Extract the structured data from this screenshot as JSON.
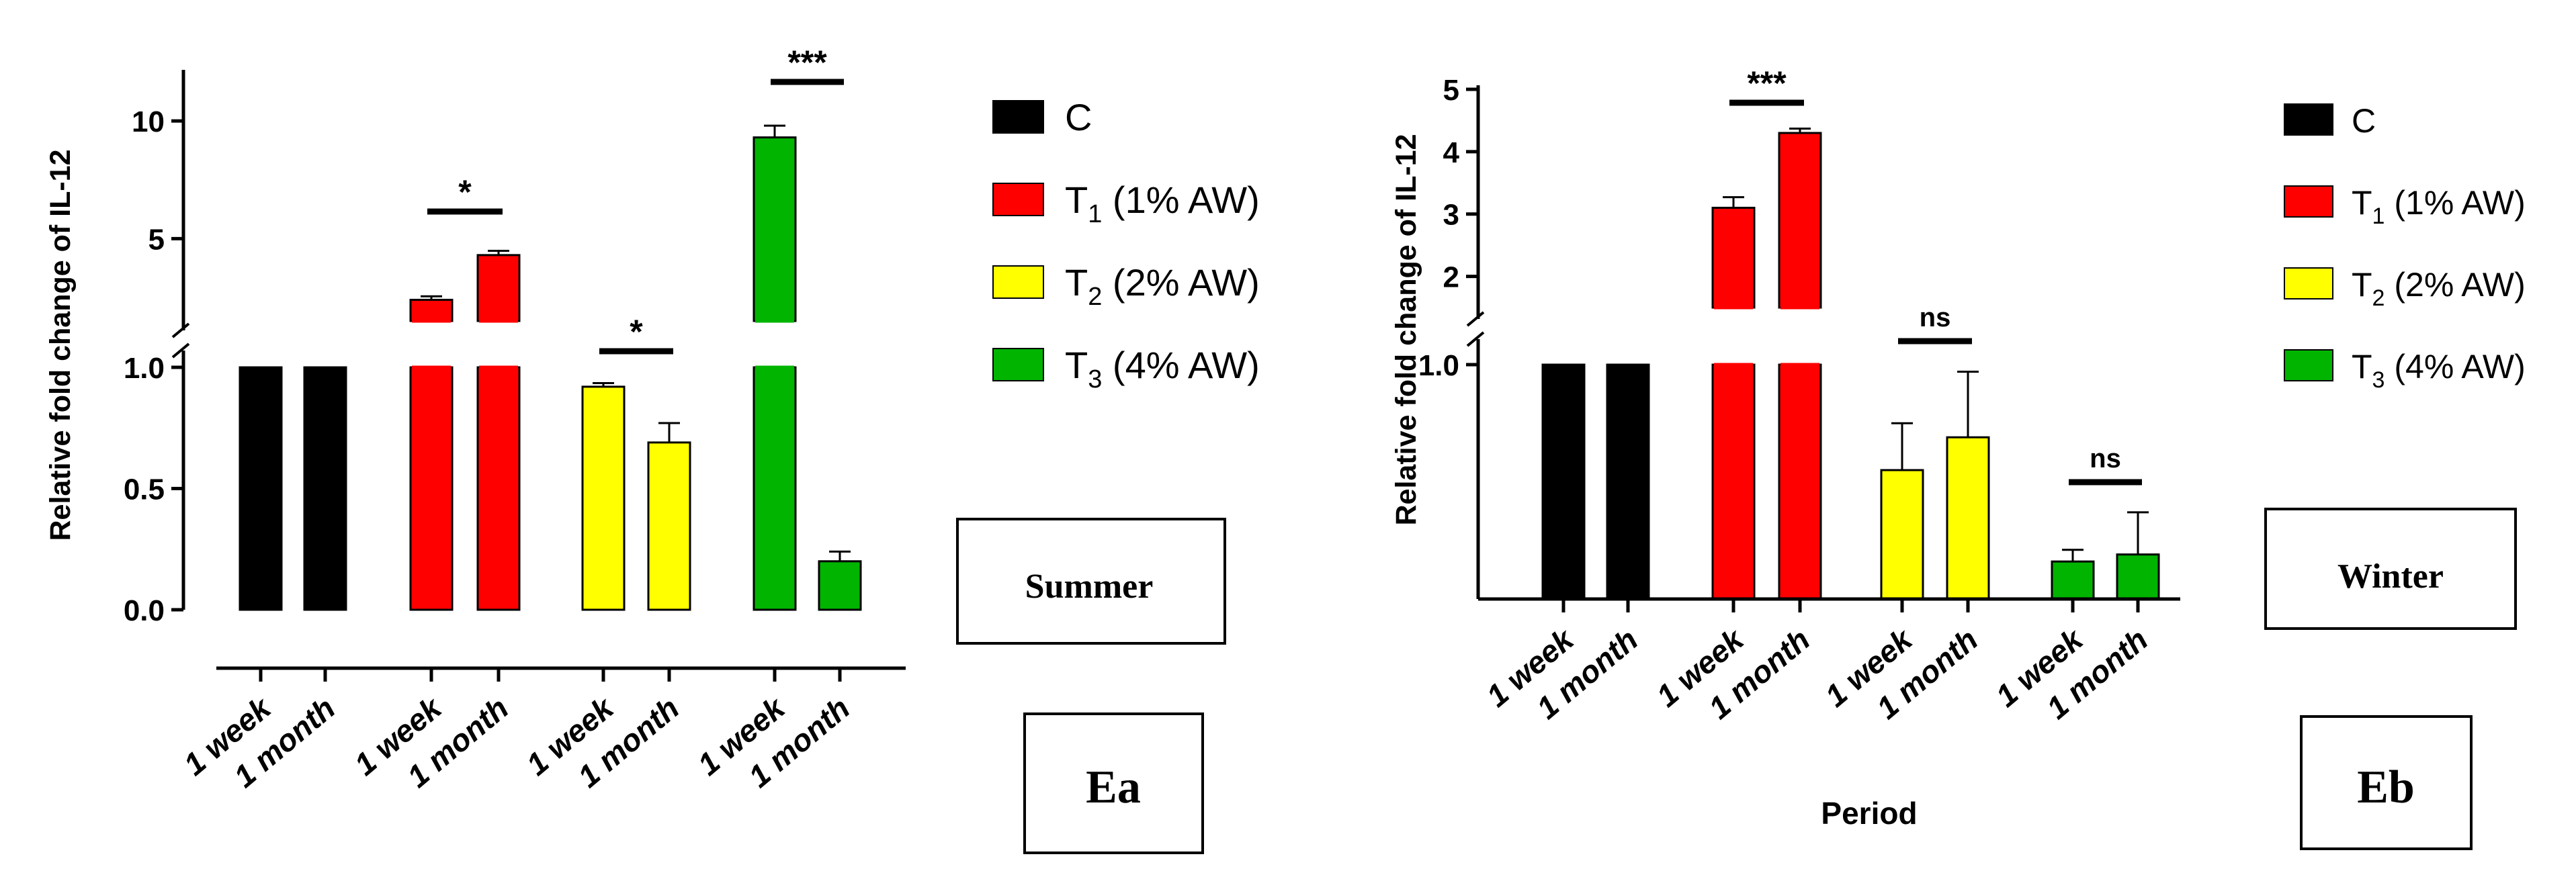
{
  "colors": {
    "C": "#000000",
    "T1": "#ff0000",
    "T2": "#ffff00",
    "T3": "#00b400",
    "axis": "#000000"
  },
  "legend": [
    {
      "key": "C",
      "main": "C",
      "sub": "",
      "rest": ""
    },
    {
      "key": "T1",
      "main": "T",
      "sub": "1",
      "rest": " (1% AW)"
    },
    {
      "key": "T2",
      "main": "T",
      "sub": "2",
      "rest": " (2% AW)"
    },
    {
      "key": "T3",
      "main": "T",
      "sub": "3",
      "rest": " (4% AW)"
    }
  ],
  "chart_data": [
    {
      "type": "bar",
      "id": "Ea",
      "panel_label": "Ea",
      "season_label": "Summer",
      "ylabel": "Relative fold change of IL-12",
      "xlabel": "",
      "y_axis_break": {
        "lower_range": [
          0,
          1.0
        ],
        "upper_range": [
          1.5,
          12
        ]
      },
      "yticks_lower": [
        "0.0",
        "0.5",
        "1.0"
      ],
      "yticks_upper": [
        "5",
        "10"
      ],
      "categories": [
        "1 week",
        "1 month",
        "1 week",
        "1 month",
        "1 week",
        "1 month",
        "1 week",
        "1 month"
      ],
      "groups": [
        "C",
        "C",
        "T1",
        "T1",
        "T2",
        "T2",
        "T3",
        "T3"
      ],
      "values": [
        1.0,
        1.0,
        2.4,
        4.3,
        0.92,
        0.69,
        9.3,
        0.2
      ],
      "errors": [
        0,
        0,
        0.15,
        0.18,
        0.015,
        0.08,
        0.5,
        0.04
      ],
      "significance": [
        {
          "pair": [
            2,
            3
          ],
          "label": "*"
        },
        {
          "pair": [
            4,
            5
          ],
          "label": "*"
        },
        {
          "pair": [
            6,
            7
          ],
          "label": "***"
        }
      ]
    },
    {
      "type": "bar",
      "id": "Eb",
      "panel_label": "Eb",
      "season_label": "Winter",
      "ylabel": "Relative fold change of IL-12",
      "xlabel": "Period",
      "y_axis_break": {
        "lower_range": [
          0,
          1.0
        ],
        "upper_range": [
          1.5,
          5
        ]
      },
      "yticks_lower": [
        "1.0"
      ],
      "yticks_upper": [
        "2",
        "3",
        "4",
        "5"
      ],
      "categories": [
        "1 week",
        "1 month",
        "1 week",
        "1 month",
        "1 week",
        "1 month",
        "1 week",
        "1 month"
      ],
      "groups": [
        "C",
        "C",
        "T1",
        "T1",
        "T2",
        "T2",
        "T3",
        "T3"
      ],
      "values": [
        1.0,
        1.0,
        3.1,
        4.3,
        0.55,
        0.69,
        0.16,
        0.19
      ],
      "errors": [
        0,
        0,
        0.17,
        0.07,
        0.2,
        0.28,
        0.05,
        0.18
      ],
      "significance": [
        {
          "pair": [
            2,
            3
          ],
          "label": "***"
        },
        {
          "pair": [
            4,
            5
          ],
          "label": "ns"
        },
        {
          "pair": [
            6,
            7
          ],
          "label": "ns"
        }
      ]
    }
  ]
}
